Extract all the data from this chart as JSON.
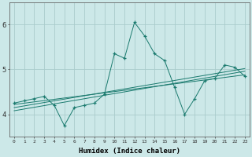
{
  "title": "",
  "xlabel": "Humidex (Indice chaleur)",
  "ylabel": "",
  "bg_color": "#cce8e8",
  "grid_color": "#aacccc",
  "line_color": "#1a7a6e",
  "xlim": [
    -0.5,
    23.5
  ],
  "ylim": [
    3.5,
    6.5
  ],
  "yticks": [
    4,
    5,
    6
  ],
  "main_x": [
    0,
    1,
    2,
    3,
    4,
    5,
    6,
    7,
    8,
    9,
    10,
    11,
    12,
    13,
    14,
    15,
    16,
    17,
    18,
    19,
    20,
    21,
    22,
    23
  ],
  "main_y": [
    4.25,
    4.3,
    4.35,
    4.4,
    4.2,
    3.75,
    4.15,
    4.2,
    4.25,
    4.45,
    5.35,
    5.25,
    6.05,
    5.75,
    5.35,
    5.2,
    4.6,
    4.0,
    4.35,
    4.75,
    4.8,
    5.1,
    5.05,
    4.85
  ],
  "line2_x": [
    0,
    23
  ],
  "line2_y": [
    4.22,
    4.88
  ],
  "line3_x": [
    0,
    23
  ],
  "line3_y": [
    4.15,
    5.02
  ],
  "line4_x": [
    0,
    23
  ],
  "line4_y": [
    4.08,
    4.96
  ]
}
